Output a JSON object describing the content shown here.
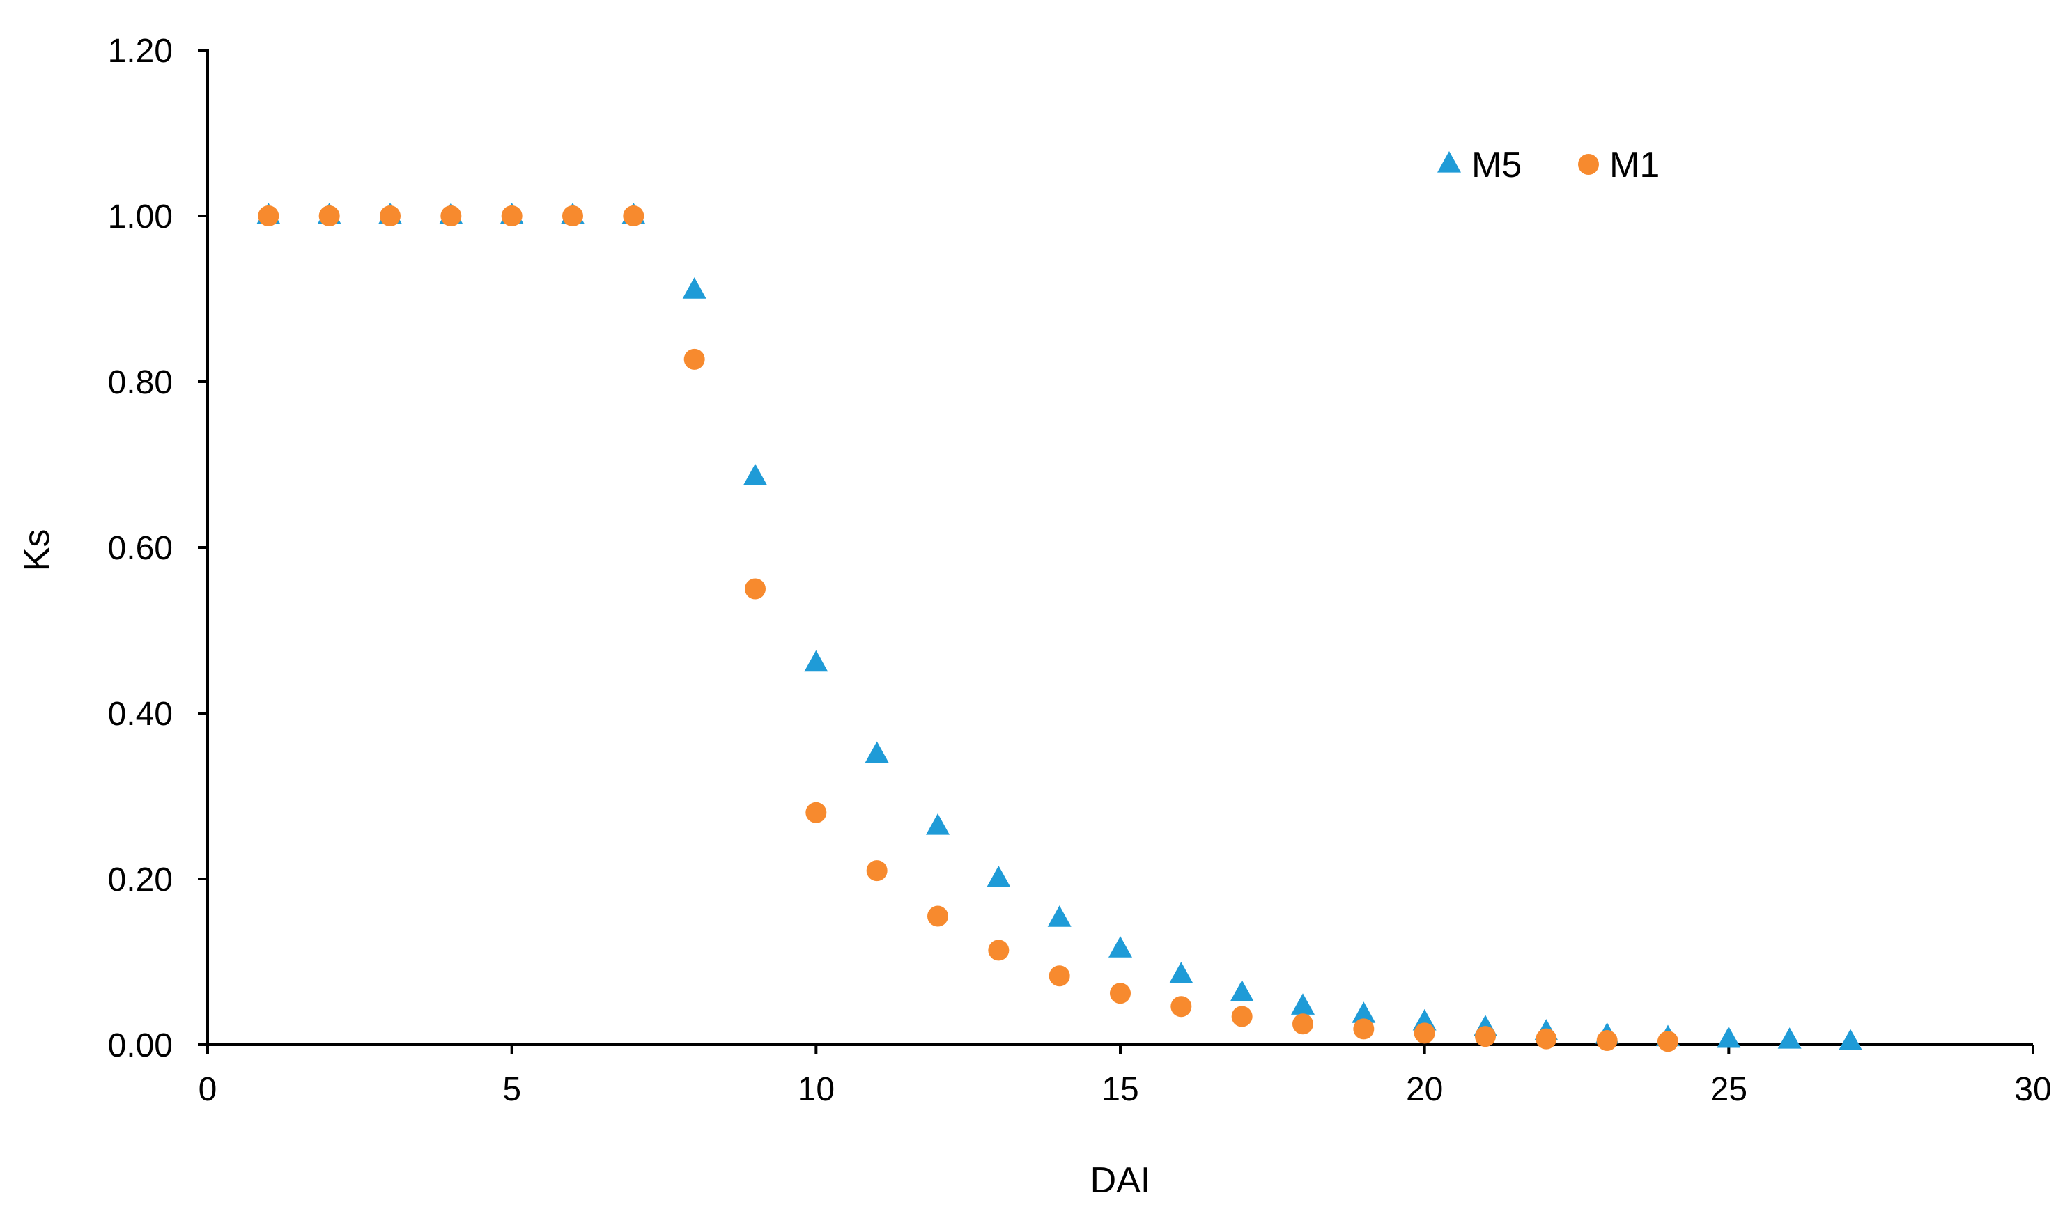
{
  "chart_data": {
    "type": "scatter",
    "title": "",
    "xlabel": "DAI",
    "ylabel": "Ks",
    "xlim": [
      0,
      30
    ],
    "ylim": [
      0,
      1.2
    ],
    "x_ticks": [
      "0",
      "5",
      "10",
      "15",
      "20",
      "25",
      "30"
    ],
    "x_tick_values": [
      0,
      5,
      10,
      15,
      20,
      25,
      30
    ],
    "y_ticks": [
      "0.00",
      "0.20",
      "0.40",
      "0.60",
      "0.80",
      "1.00",
      "1.20"
    ],
    "y_tick_values": [
      0,
      0.2,
      0.4,
      0.6,
      0.8,
      1.0,
      1.2
    ],
    "grid": false,
    "legend_position": "top-right",
    "series": [
      {
        "name": "M5",
        "marker": "triangle",
        "color": "#1F9BD7",
        "x": [
          1,
          2,
          3,
          4,
          5,
          6,
          7,
          8,
          9,
          10,
          11,
          12,
          13,
          14,
          15,
          16,
          17,
          18,
          19,
          20,
          21,
          22,
          23,
          24,
          25,
          26,
          27
        ],
        "y": [
          1.0,
          1.0,
          1.0,
          1.0,
          1.0,
          1.0,
          1.0,
          0.91,
          0.685,
          0.46,
          0.35,
          0.263,
          0.2,
          0.152,
          0.115,
          0.084,
          0.062,
          0.046,
          0.036,
          0.027,
          0.02,
          0.015,
          0.011,
          0.008,
          0.006,
          0.005,
          0.003
        ]
      },
      {
        "name": "M1",
        "marker": "circle",
        "color": "#F78A2E",
        "x": [
          1,
          2,
          3,
          4,
          5,
          6,
          7,
          8,
          9,
          10,
          11,
          12,
          13,
          14,
          15,
          16,
          17,
          18,
          19,
          20,
          21,
          22,
          23,
          24
        ],
        "y": [
          1.0,
          1.0,
          1.0,
          1.0,
          1.0,
          1.0,
          1.0,
          0.827,
          0.55,
          0.28,
          0.21,
          0.155,
          0.114,
          0.083,
          0.062,
          0.046,
          0.034,
          0.025,
          0.019,
          0.014,
          0.01,
          0.007,
          0.005,
          0.004
        ]
      }
    ]
  }
}
